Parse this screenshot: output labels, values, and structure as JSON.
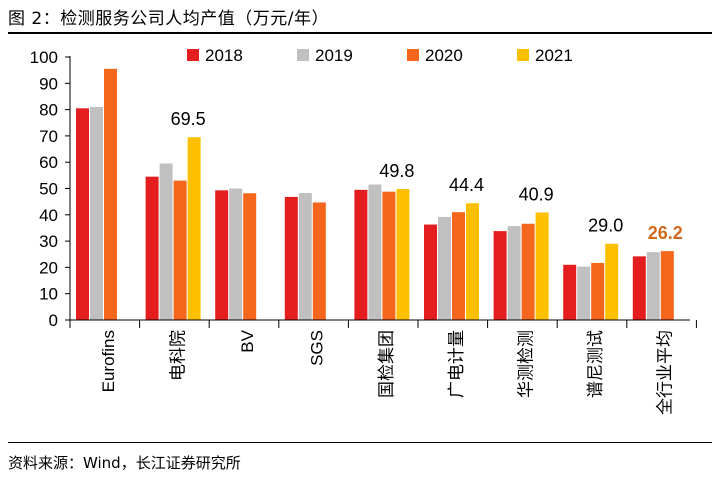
{
  "figure": {
    "title": "图 2：检测服务公司人均产值（万元/年）",
    "source": "资料来源：Wind，长江证券研究所"
  },
  "colors": {
    "2018": "#e41e1e",
    "2019": "#c0c0c0",
    "2020": "#f4661b",
    "2021": "#fcc000",
    "highlight_label": "#d2691e"
  },
  "chart_data": {
    "type": "bar",
    "title": "检测服务公司人均产值（万元/年）",
    "xlabel": "",
    "ylabel": "",
    "ylim": [
      0,
      100
    ],
    "yticks": [
      0,
      10,
      20,
      30,
      40,
      50,
      60,
      70,
      80,
      90,
      100
    ],
    "grid": false,
    "legend_position": "top",
    "categories": [
      "Eurofins",
      "电科院",
      "BV",
      "SGS",
      "国检集团",
      "广电计量",
      "华测检测",
      "谱尼测试",
      "全行业平均"
    ],
    "series": [
      {
        "name": "2018",
        "values": [
          80.5,
          54.5,
          49.3,
          46.8,
          49.5,
          36.3,
          33.8,
          21.0,
          24.2
        ]
      },
      {
        "name": "2019",
        "values": [
          81.0,
          59.5,
          50.0,
          48.3,
          51.5,
          39.2,
          35.7,
          20.3,
          25.8
        ]
      },
      {
        "name": "2020",
        "values": [
          95.5,
          53.0,
          48.2,
          44.7,
          48.8,
          41.0,
          36.6,
          21.7,
          26.2
        ]
      },
      {
        "name": "2021",
        "values": [
          null,
          69.5,
          null,
          null,
          49.8,
          44.4,
          40.9,
          29.0,
          null
        ]
      }
    ],
    "annotations": [
      {
        "category": "电科院",
        "text": "69.5",
        "value": 69.5
      },
      {
        "category": "国检集团",
        "text": "49.8",
        "value": 49.8
      },
      {
        "category": "广电计量",
        "text": "44.4",
        "value": 44.4
      },
      {
        "category": "华测检测",
        "text": "40.9",
        "value": 40.9
      },
      {
        "category": "谱尼测试",
        "text": "29.0",
        "value": 29.0
      },
      {
        "category": "全行业平均",
        "text": "26.2",
        "value": 26.2,
        "highlight": true
      }
    ]
  }
}
